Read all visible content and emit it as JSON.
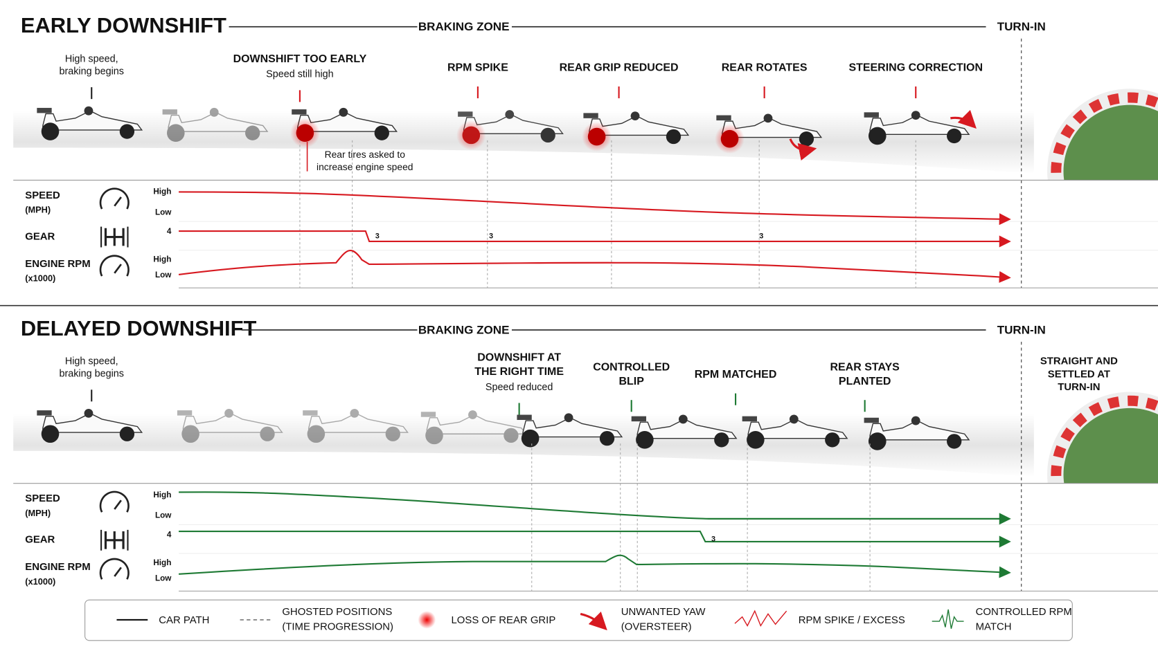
{
  "panels": [
    {
      "title": "EARLY DOWNSHIFT",
      "color": "#d71920",
      "zone": "BRAKING ZONE",
      "turn_in": "TURN-IN",
      "callouts": [
        {
          "note": [
            "High speed,",
            "braking begins"
          ]
        },
        {
          "heading": [
            "DOWNSHIFT TOO EARLY"
          ],
          "note": [
            "Speed still high"
          ]
        },
        {
          "heading": [
            "RPM SPIKE"
          ]
        },
        {
          "heading": [
            "REAR GRIP REDUCED"
          ]
        },
        {
          "heading": [
            "REAR ROTATES"
          ]
        },
        {
          "heading": [
            "STEERING CORRECTION"
          ]
        }
      ],
      "annotation": [
        "Rear tires asked to",
        "increase engine speed"
      ],
      "rows": [
        {
          "label": [
            "SPEED",
            "(MPH)"
          ],
          "scale": [
            "High",
            "Low"
          ]
        },
        {
          "label": [
            "GEAR"
          ],
          "scale": [
            "4"
          ]
        },
        {
          "label": [
            "ENGINE RPM",
            "(x1000)"
          ],
          "scale": [
            "High",
            "Low"
          ]
        }
      ],
      "gear_marks": [
        "3",
        "3",
        "3"
      ]
    },
    {
      "title": "DELAYED DOWNSHIFT",
      "color": "#1e7a34",
      "zone": "BRAKING ZONE",
      "turn_in": "TURN-IN",
      "callouts": [
        {
          "note": [
            "High speed,",
            "braking begins"
          ]
        },
        {
          "heading": [
            "DOWNSHIFT AT",
            "THE RIGHT TIME"
          ],
          "note": [
            "Speed reduced"
          ]
        },
        {
          "heading": [
            "CONTROLLED",
            "BLIP"
          ]
        },
        {
          "heading": [
            "RPM MATCHED"
          ]
        },
        {
          "heading": [
            "REAR STAYS",
            "PLANTED"
          ]
        }
      ],
      "end_note": [
        "STRAIGHT AND",
        "SETTLED AT",
        "TURN-IN"
      ],
      "rows": [
        {
          "label": [
            "SPEED",
            "(MPH)"
          ],
          "scale": [
            "High",
            "Low"
          ]
        },
        {
          "label": [
            "GEAR"
          ],
          "scale": [
            "4"
          ]
        },
        {
          "label": [
            "ENGINE RPM",
            "(x1000)"
          ],
          "scale": [
            "High",
            "Low"
          ]
        }
      ],
      "gear_marks": [
        "3"
      ]
    }
  ],
  "legend": [
    [
      "CAR PATH"
    ],
    [
      "GHOSTED POSITIONS",
      "(TIME PROGRESSION)"
    ],
    [
      "LOSS OF REAR GRIP"
    ],
    [
      "UNWANTED YAW",
      "(OVERSTEER)"
    ],
    [
      "RPM SPIKE / EXCESS"
    ],
    [
      "CONTROLLED RPM",
      "MATCH"
    ]
  ]
}
